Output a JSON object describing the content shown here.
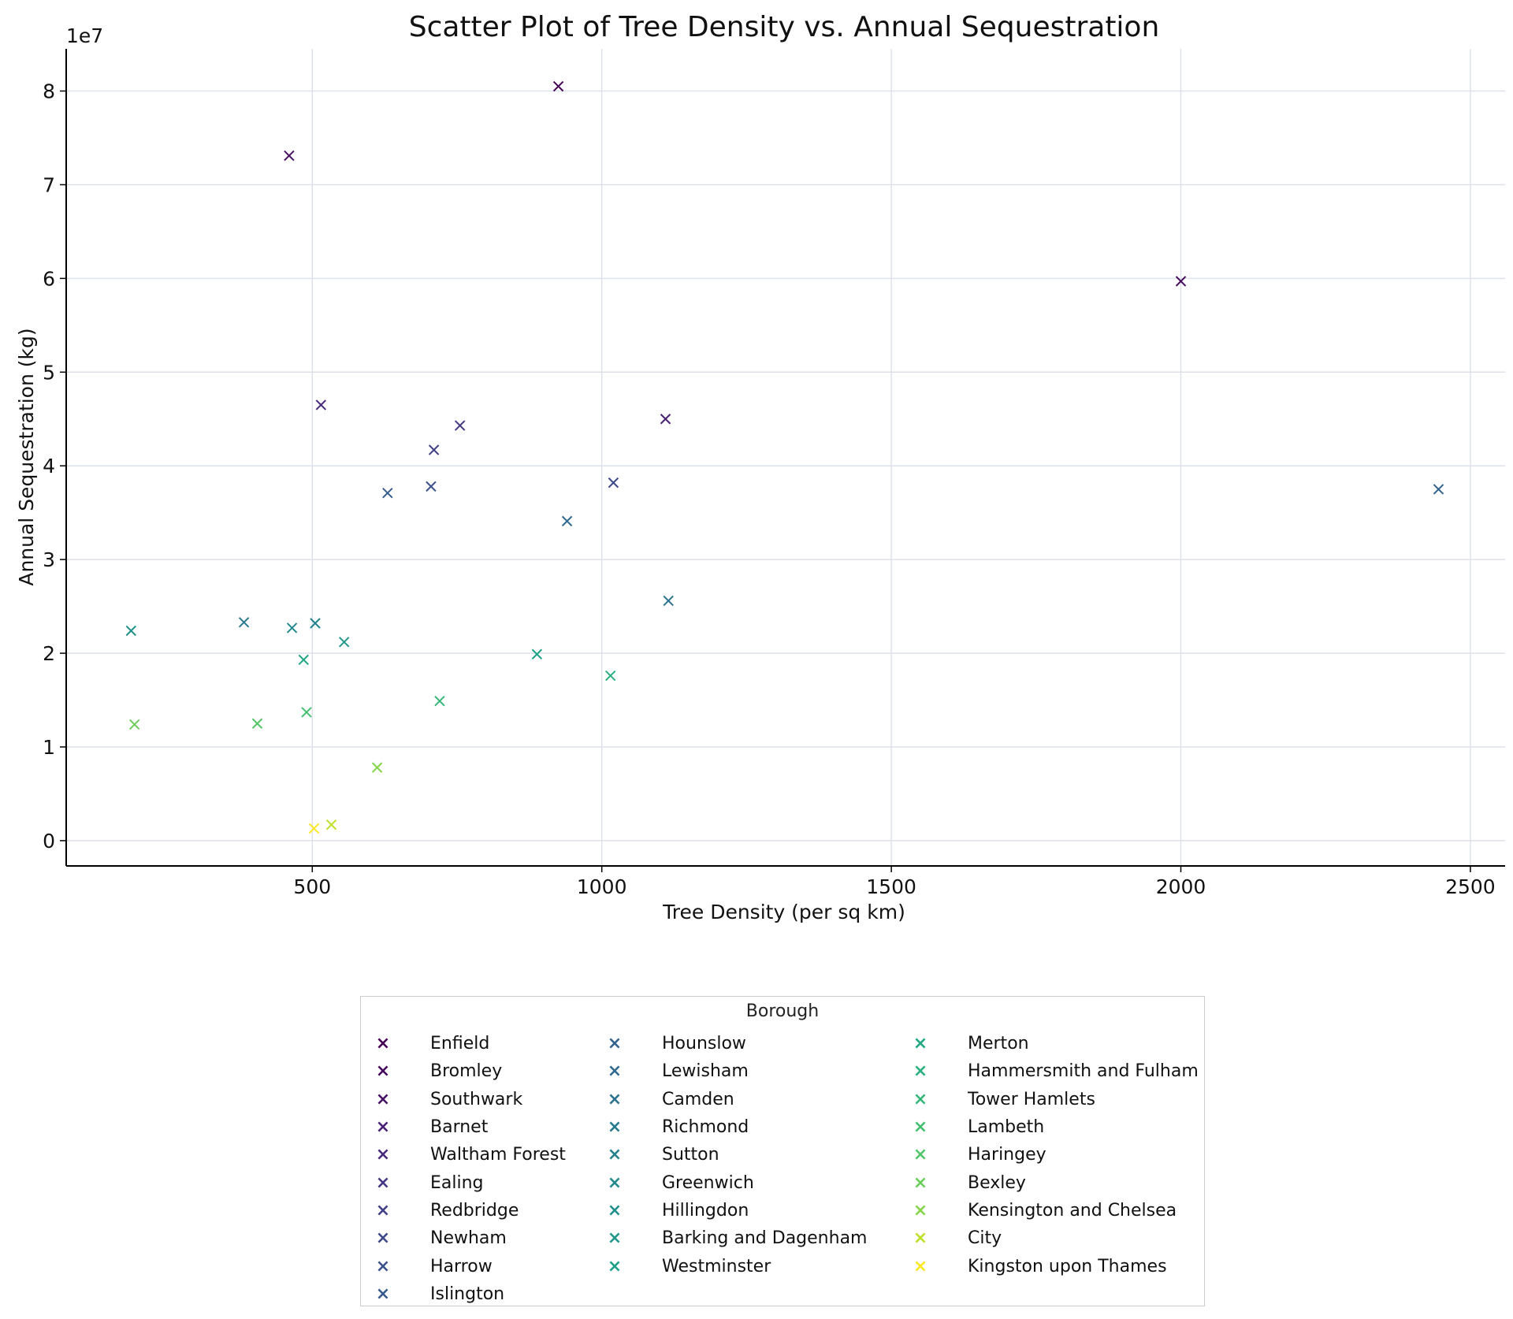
{
  "chart_data": {
    "type": "scatter",
    "title": "Scatter Plot of Tree Density vs. Annual Sequestration",
    "xlabel": "Tree Density (per sq km)",
    "ylabel": "Annual Sequestration (kg)",
    "y_offset_label": "1e7",
    "xlim": [
      75,
      2560
    ],
    "ylim": [
      -2.7,
      84.5
    ],
    "x_ticks": [
      500,
      1000,
      1500,
      2000,
      2500
    ],
    "x_tick_labels": [
      "500",
      "1000",
      "1500",
      "2000",
      "2500"
    ],
    "y_ticks": [
      0,
      10,
      20,
      30,
      40,
      50,
      60,
      70,
      80
    ],
    "y_tick_labels": [
      "0",
      "1",
      "2",
      "3",
      "4",
      "5",
      "6",
      "7",
      "8"
    ],
    "y_unit_note": "values in units of 1e6 kg (axis scale 1e7)",
    "grid": true,
    "marker": "x",
    "legend_title": "Borough",
    "legend_position": "below",
    "series": [
      {
        "name": "Enfield",
        "color": "#440154",
        "x": [
          925
        ],
        "y": [
          80.5
        ]
      },
      {
        "name": "Bromley",
        "color": "#46085c",
        "x": [
          2000
        ],
        "y": [
          59.7
        ]
      },
      {
        "name": "Southwark",
        "color": "#471164",
        "x": [
          460
        ],
        "y": [
          73.1
        ]
      },
      {
        "name": "Barnet",
        "color": "#482173",
        "x": [
          1110
        ],
        "y": [
          45.0
        ]
      },
      {
        "name": "Waltham Forest",
        "color": "#472a7a",
        "x": [
          515
        ],
        "y": [
          46.5
        ]
      },
      {
        "name": "Ealing",
        "color": "#453781",
        "x": [
          755
        ],
        "y": [
          44.3
        ]
      },
      {
        "name": "Redbridge",
        "color": "#424086",
        "x": [
          710
        ],
        "y": [
          41.7
        ]
      },
      {
        "name": "Newham",
        "color": "#3e4989",
        "x": [
          1020
        ],
        "y": [
          38.2
        ]
      },
      {
        "name": "Harrow",
        "color": "#3b528b",
        "x": [
          705
        ],
        "y": [
          37.8
        ]
      },
      {
        "name": "Islington",
        "color": "#375b8d",
        "x": [
          630
        ],
        "y": [
          37.1
        ]
      },
      {
        "name": "Hounslow",
        "color": "#33638d",
        "x": [
          2445
        ],
        "y": [
          37.5
        ]
      },
      {
        "name": "Lewisham",
        "color": "#306a8e",
        "x": [
          940
        ],
        "y": [
          34.1
        ]
      },
      {
        "name": "Camden",
        "color": "#2c728e",
        "x": [
          1115
        ],
        "y": [
          25.6
        ]
      },
      {
        "name": "Richmond",
        "color": "#297a8e",
        "x": [
          382
        ],
        "y": [
          23.3
        ]
      },
      {
        "name": "Sutton",
        "color": "#26818e",
        "x": [
          505
        ],
        "y": [
          23.2
        ]
      },
      {
        "name": "Greenwich",
        "color": "#23898e",
        "x": [
          465
        ],
        "y": [
          22.7
        ]
      },
      {
        "name": "Hillingdon",
        "color": "#21918c",
        "x": [
          187
        ],
        "y": [
          22.4
        ]
      },
      {
        "name": "Barking and Dagenham",
        "color": "#1f988b",
        "x": [
          555
        ],
        "y": [
          21.2
        ]
      },
      {
        "name": "Westminster",
        "color": "#1fa188",
        "x": [
          888
        ],
        "y": [
          19.9
        ]
      },
      {
        "name": "Merton",
        "color": "#22a884",
        "x": [
          485
        ],
        "y": [
          19.3
        ]
      },
      {
        "name": "Hammersmith and Fulham",
        "color": "#2ab07f",
        "x": [
          1015
        ],
        "y": [
          17.6
        ]
      },
      {
        "name": "Tower Hamlets",
        "color": "#35b779",
        "x": [
          720
        ],
        "y": [
          14.9
        ]
      },
      {
        "name": "Lambeth",
        "color": "#44bf70",
        "x": [
          490
        ],
        "y": [
          13.7
        ]
      },
      {
        "name": "Haringey",
        "color": "#54c568",
        "x": [
          405
        ],
        "y": [
          12.5
        ]
      },
      {
        "name": "Bexley",
        "color": "#6ccd5a",
        "x": [
          193
        ],
        "y": [
          12.4
        ]
      },
      {
        "name": "Kensington and Chelsea",
        "color": "#86d549",
        "x": [
          612
        ],
        "y": [
          7.8
        ]
      },
      {
        "name": "City",
        "color": "#bddf26",
        "x": [
          533
        ],
        "y": [
          1.7
        ]
      },
      {
        "name": "Kingston upon Thames",
        "color": "#fde725",
        "x": [
          503
        ],
        "y": [
          1.3
        ]
      }
    ]
  }
}
